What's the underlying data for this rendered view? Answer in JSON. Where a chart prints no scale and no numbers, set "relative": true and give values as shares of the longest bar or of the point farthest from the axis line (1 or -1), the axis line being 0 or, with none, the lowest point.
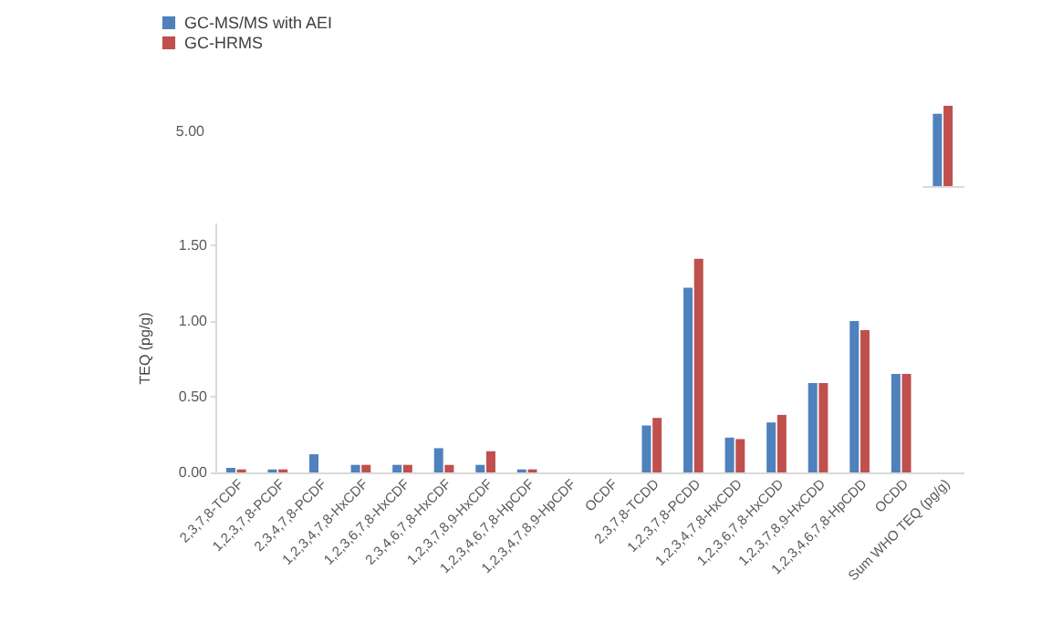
{
  "chart_data": [
    {
      "type": "bar",
      "relative": true,
      "annotations": [
        "5.00"
      ],
      "categories": [
        null
      ],
      "series": [
        {
          "name": "GC-MS/MS with AEI",
          "color": "#4f81bd",
          "values": [
            0.9
          ]
        },
        {
          "name": "GC-HRMS",
          "color": "#c0504d",
          "values": [
            1
          ]
        }
      ],
      "legend": "top left"
    },
    {
      "type": "bar",
      "ylabel": "TEQ (pg/g)",
      "categories": [
        "2,3,7,8-TCDF",
        "1,2,3,7,8-PCDF",
        "2,3,4,7,8-PCDF",
        "1,2,3,4,7,8-HxCDF",
        "1,2,3,6,7,8-HxCDF",
        "2,3,4,6,7,8-HxCDF",
        "1,2,3,7,8,9-HxCDF",
        "1,2,3,4,6,7,8-HpCDF",
        "1,2,3,4,7,8,9-HpCDF",
        "OCDF",
        "2,3,7,8-TCDD",
        "1,2,3,7,8-PCDD",
        "1,2,3,4,7,8-HxCDD",
        "1,2,3,6,7,8-HxCDD",
        "1,2,3,7,8,9-HxCDD",
        "1,2,3,4,6,7,8-HpCDD",
        "OCDD",
        "Sum WHO TEQ (pg/g)"
      ],
      "series": [
        {
          "color": "#4f81bd",
          "values": [
            0.03,
            0.02,
            0.12,
            0.05,
            0.05,
            0.16,
            0.05,
            0.02,
            0,
            0,
            0.31,
            1.22,
            0.23,
            0.33,
            0.59,
            1.0,
            0.65,
            null
          ]
        },
        {
          "color": "#c0504d",
          "values": [
            0.02,
            0.02,
            0,
            0.05,
            0.05,
            0.05,
            0.14,
            0.02,
            0,
            0,
            0.36,
            1.41,
            0.22,
            0.38,
            0.59,
            0.94,
            0.65,
            null
          ]
        }
      ],
      "ylim": [
        0,
        1.65
      ],
      "yticks": [
        {
          "value": 0,
          "label": "0.00"
        },
        {
          "value": 0.5,
          "label": "0.50"
        },
        {
          "value": 1,
          "label": "1.00"
        },
        {
          "value": 1.5,
          "label": "1.50"
        }
      ]
    }
  ]
}
